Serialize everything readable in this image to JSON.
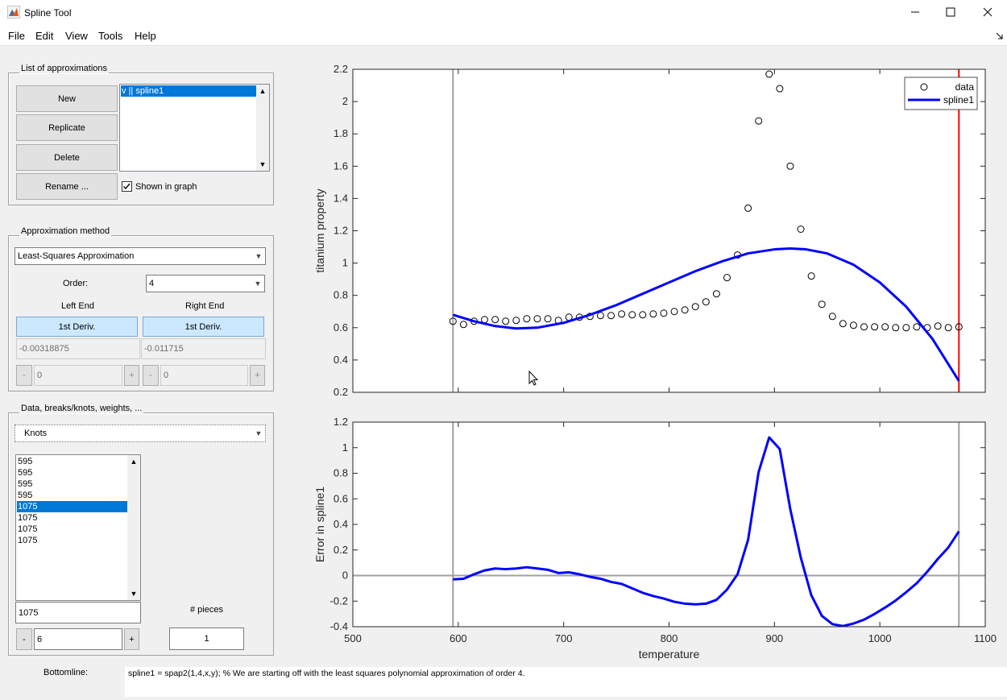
{
  "window": {
    "title": "Spline Tool"
  },
  "menu": [
    "File",
    "Edit",
    "View",
    "Tools",
    "Help"
  ],
  "list_panel": {
    "title": "List of approximations",
    "buttons": [
      "New",
      "Replicate",
      "Delete",
      "Rename ..."
    ],
    "items": [
      "v || spline1"
    ],
    "checkbox": "Shown in graph"
  },
  "method_panel": {
    "title": "Approximation method",
    "method": "Least-Squares Approximation",
    "order_label": "Order:",
    "order": "4",
    "left_end": "Left End",
    "right_end": "Right End",
    "left_condition": "1st Deriv.",
    "right_condition": "1st Deriv.",
    "left_value": "-0.00318875",
    "right_value": "-0.011715",
    "minus": "-",
    "plus": "+",
    "left_step": "0",
    "right_step": "0"
  },
  "data_panel": {
    "title": "Data, breaks/knots, weights, ...",
    "view": "Knots",
    "knots": [
      "595",
      "595",
      "595",
      "595",
      "1075",
      "1075",
      "1075",
      "1075"
    ],
    "selected_index": 4,
    "knot_field": "1075",
    "pieces_label": "# pieces",
    "pieces": "1",
    "step_field": "6"
  },
  "bottomline": {
    "label": "Bottomline:",
    "text": "spline1 = spap2(1,4,x,y); % We are starting off with the least squares polynomial approximation of order 4."
  },
  "chart_data": [
    {
      "type": "line",
      "ylabel": "titanium property",
      "xlim": [
        500,
        1100
      ],
      "ylim": [
        0.2,
        2.2
      ],
      "yticks": [
        0.2,
        0.4,
        0.6,
        0.8,
        1,
        1.2,
        1.4,
        1.6,
        1.8,
        2,
        2.2
      ],
      "legend": "upper right",
      "vlines": [
        {
          "x": 595,
          "color": "#a0a0a0"
        },
        {
          "x": 1075,
          "color": "#ff0000"
        }
      ],
      "series": [
        {
          "name": "data",
          "type": "scatter",
          "color": "#000000",
          "x": [
            595,
            605,
            615,
            625,
            635,
            645,
            655,
            665,
            675,
            685,
            695,
            705,
            715,
            725,
            735,
            745,
            755,
            765,
            775,
            785,
            795,
            805,
            815,
            825,
            835,
            845,
            855,
            865,
            875,
            885,
            895,
            905,
            915,
            925,
            935,
            945,
            955,
            965,
            975,
            985,
            995,
            1005,
            1015,
            1025,
            1035,
            1045,
            1055,
            1065,
            1075
          ],
          "values": [
            0.64,
            0.62,
            0.64,
            0.65,
            0.65,
            0.64,
            0.645,
            0.655,
            0.655,
            0.655,
            0.645,
            0.665,
            0.665,
            0.67,
            0.675,
            0.675,
            0.685,
            0.68,
            0.68,
            0.685,
            0.69,
            0.7,
            0.71,
            0.73,
            0.76,
            0.81,
            0.91,
            1.05,
            1.34,
            1.88,
            2.17,
            2.08,
            1.6,
            1.21,
            0.92,
            0.745,
            0.67,
            0.625,
            0.615,
            0.605,
            0.605,
            0.605,
            0.6,
            0.6,
            0.605,
            0.6,
            0.61,
            0.6,
            0.605
          ]
        },
        {
          "name": "spline1",
          "type": "line",
          "color": "#0000ff",
          "x": [
            595,
            615,
            635,
            655,
            675,
            700,
            725,
            750,
            775,
            800,
            825,
            850,
            875,
            900,
            915,
            930,
            950,
            975,
            1000,
            1025,
            1050,
            1075
          ],
          "values": [
            0.68,
            0.64,
            0.61,
            0.595,
            0.6,
            0.63,
            0.68,
            0.74,
            0.81,
            0.88,
            0.95,
            1.01,
            1.06,
            1.085,
            1.09,
            1.085,
            1.06,
            0.99,
            0.88,
            0.73,
            0.53,
            0.27
          ]
        }
      ]
    },
    {
      "type": "line",
      "xlabel": "temperature",
      "ylabel": "Error in spline1",
      "xlim": [
        500,
        1100
      ],
      "ylim": [
        -0.4,
        1.2
      ],
      "xticks": [
        500,
        600,
        700,
        800,
        900,
        1000,
        1100
      ],
      "yticks": [
        -0.4,
        -0.2,
        0,
        0.2,
        0.4,
        0.6,
        0.8,
        1,
        1.2
      ],
      "zero_line": true,
      "vlines": [
        {
          "x": 595,
          "color": "#a0a0a0"
        },
        {
          "x": 1075,
          "color": "#a0a0a0"
        }
      ],
      "series": [
        {
          "type": "line",
          "color": "#0000ff",
          "x": [
            595,
            605,
            615,
            625,
            635,
            645,
            655,
            665,
            675,
            685,
            695,
            705,
            715,
            725,
            735,
            745,
            755,
            765,
            775,
            785,
            795,
            805,
            815,
            825,
            835,
            845,
            855,
            865,
            875,
            885,
            895,
            905,
            915,
            925,
            935,
            945,
            955,
            965,
            975,
            985,
            995,
            1005,
            1015,
            1025,
            1035,
            1045,
            1055,
            1065,
            1075
          ],
          "values": [
            -0.03,
            -0.025,
            0.01,
            0.04,
            0.055,
            0.05,
            0.055,
            0.065,
            0.055,
            0.045,
            0.02,
            0.025,
            0.01,
            -0.01,
            -0.025,
            -0.05,
            -0.065,
            -0.1,
            -0.135,
            -0.16,
            -0.18,
            -0.205,
            -0.22,
            -0.225,
            -0.22,
            -0.19,
            -0.11,
            0.01,
            0.28,
            0.81,
            1.08,
            0.99,
            0.52,
            0.14,
            -0.155,
            -0.315,
            -0.38,
            -0.395,
            -0.375,
            -0.345,
            -0.3,
            -0.25,
            -0.195,
            -0.13,
            -0.06,
            0.03,
            0.13,
            0.22,
            0.345
          ]
        }
      ]
    }
  ]
}
